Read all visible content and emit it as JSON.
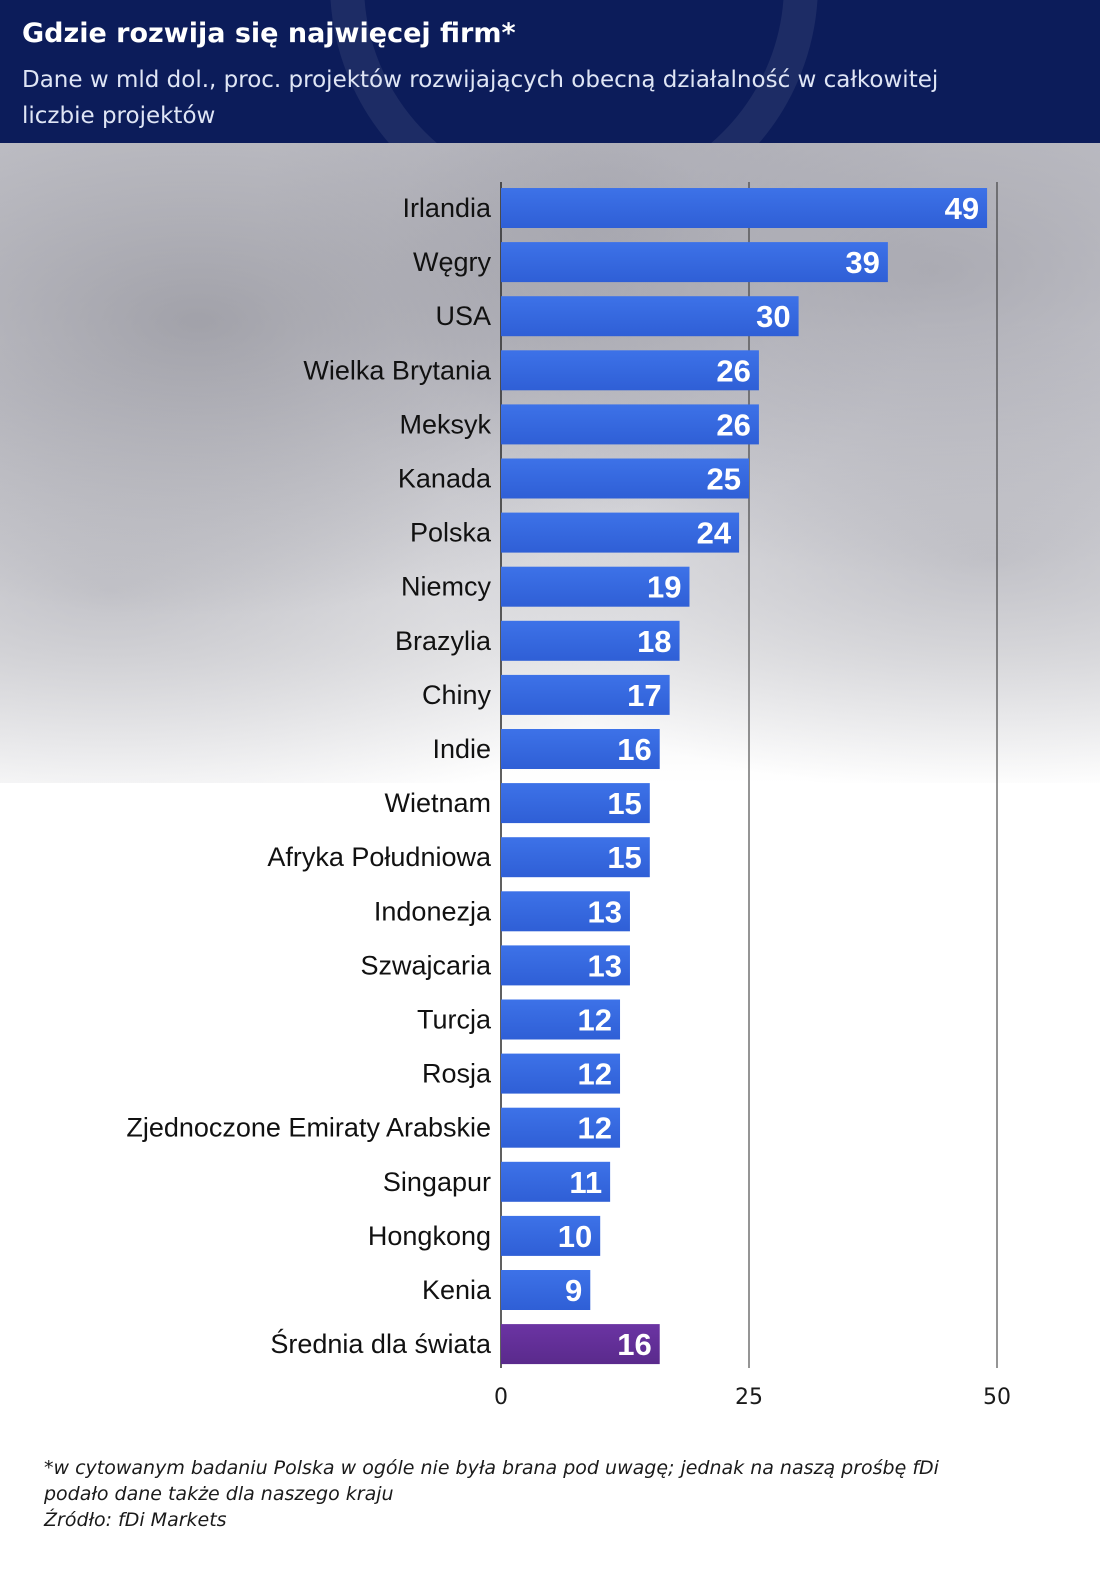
{
  "header": {
    "title": "Gdzie rozwija się najwięcej firm*",
    "subtitle_line1": "Dane w mld dol., proc. projektów rozwijających obecną działalność w całkowitej",
    "subtitle_line2": "liczbie projektów"
  },
  "footnote": {
    "line1": "*w cytowanym badaniu Polska w ogóle nie była brana pod uwagę; jednak na naszą prośbę fDi",
    "line2": "podało dane także dla naszego kraju",
    "source": "Źródło: fDi Markets"
  },
  "colors": {
    "header_bg": "#0c1c5a",
    "bar": "#2f5fd6",
    "bar_highlight": "#3d72e8",
    "average_bar": "#5a2a8c",
    "gridline": "#2b2b2b"
  },
  "chart_data": {
    "type": "bar",
    "orientation": "horizontal",
    "categories": [
      "Irlandia",
      "Węgry",
      "USA",
      "Wielka Brytania",
      "Meksyk",
      "Kanada",
      "Polska",
      "Niemcy",
      "Brazylia",
      "Chiny",
      "Indie",
      "Wietnam",
      "Afryka Południowa",
      "Indonezja",
      "Szwajcaria",
      "Turcja",
      "Rosja",
      "Zjednoczone Emiraty Arabskie",
      "Singapur",
      "Hongkong",
      "Kenia",
      "Średnia dla świata"
    ],
    "values": [
      49,
      39,
      30,
      26,
      26,
      25,
      24,
      19,
      18,
      17,
      16,
      15,
      15,
      13,
      13,
      12,
      12,
      12,
      11,
      10,
      9,
      16
    ],
    "highlight_category": "Średnia dla świata",
    "xlim": [
      0,
      50
    ],
    "xticks": [
      0,
      25,
      50
    ],
    "grid": "vertical lines at 25 and 50",
    "data_labels": true
  }
}
